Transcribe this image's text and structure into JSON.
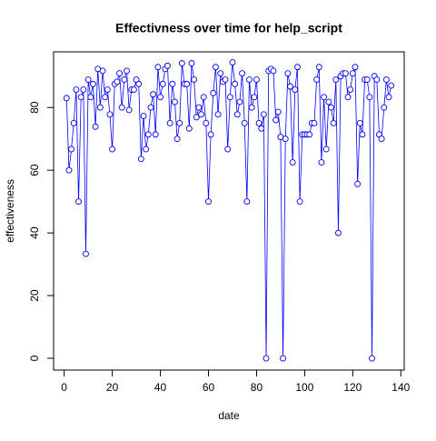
{
  "chart_data": {
    "type": "line",
    "title": "Effectivness over time for help_script",
    "x_label": "date",
    "y_label": "effectiveness",
    "color": "#0000ff",
    "x": [
      1,
      2,
      3,
      4,
      5,
      6,
      7,
      8,
      9,
      10,
      11,
      12,
      13,
      14,
      15,
      16,
      17,
      18,
      19,
      20,
      21,
      22,
      23,
      24,
      25,
      26,
      27,
      28,
      29,
      30,
      31,
      32,
      33,
      34,
      35,
      36,
      37,
      38,
      39,
      40,
      41,
      42,
      43,
      44,
      45,
      46,
      47,
      48,
      49,
      50,
      51,
      52,
      53,
      54,
      55,
      56,
      57,
      58,
      59,
      60,
      61,
      62,
      63,
      64,
      65,
      66,
      67,
      68,
      69,
      70,
      71,
      72,
      73,
      74,
      75,
      76,
      77,
      78,
      79,
      80,
      81,
      82,
      83,
      84,
      85,
      86,
      87,
      88,
      89,
      90,
      91,
      92,
      93,
      94,
      95,
      96,
      97,
      98,
      99,
      100,
      101,
      102,
      103,
      104,
      105,
      106,
      107,
      108,
      109,
      110,
      111,
      112,
      113,
      114,
      115,
      116,
      117,
      118,
      119,
      120,
      121,
      122,
      123,
      124,
      125,
      126,
      127,
      128,
      129,
      130,
      131,
      132,
      133,
      134,
      135,
      136
    ],
    "values": [
      83,
      60,
      66.7,
      75,
      85.7,
      50,
      83.3,
      85.7,
      33.3,
      88.9,
      83.3,
      87.5,
      73.9,
      92.3,
      80,
      91.7,
      83.3,
      85.7,
      77.8,
      66.7,
      87.5,
      88.2,
      90.9,
      80,
      88.9,
      91.7,
      79.2,
      85.7,
      85.7,
      88.9,
      87.5,
      63.6,
      77.3,
      66.7,
      71.4,
      80,
      84.2,
      71.4,
      92.9,
      83.3,
      87.5,
      92.3,
      93.3,
      75,
      87.5,
      81.8,
      70,
      75,
      94.1,
      87.5,
      87.5,
      73.3,
      94.1,
      88.9,
      76.9,
      80,
      77.8,
      83.3,
      75,
      50,
      71.4,
      84.6,
      92.9,
      77.8,
      90.9,
      88.2,
      88.9,
      66.7,
      83.3,
      94.4,
      87.5,
      77.8,
      81.8,
      90.9,
      75,
      50,
      88.9,
      80,
      83.3,
      88.9,
      75,
      73.3,
      77.8,
      0,
      91.7,
      92.3,
      91.7,
      76,
      78.6,
      70.6,
      0,
      70,
      90.9,
      86.7,
      62.5,
      85.7,
      92.9,
      50,
      71.4,
      71.4,
      71.4,
      71.4,
      75,
      75,
      88.9,
      92.9,
      62.5,
      83.3,
      66.7,
      81.8,
      80,
      75,
      88.9,
      40,
      90,
      90.9,
      90.9,
      83.3,
      85.7,
      90.9,
      92.9,
      55.6,
      75,
      71.4,
      88.9,
      88.9,
      83.3,
      0,
      90,
      88.9,
      71.4,
      70,
      80,
      88.9,
      83.3,
      87
    ],
    "xlim": [
      -4.4,
      141.4
    ],
    "ylim": [
      -3.76,
      97.76
    ],
    "xticks": [
      0,
      20,
      40,
      60,
      80,
      100,
      120,
      140
    ],
    "yticks": [
      0,
      20,
      40,
      60,
      80
    ]
  }
}
